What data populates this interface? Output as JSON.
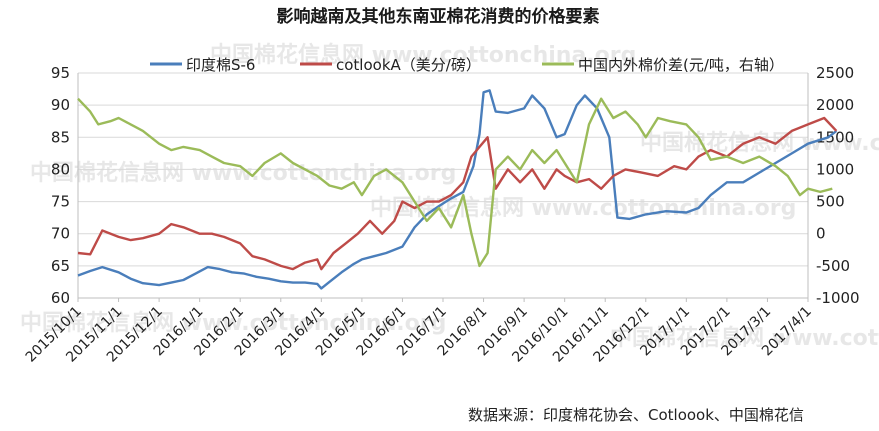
{
  "chart_data": {
    "type": "line",
    "title": "影响越南及其他东南亚棉花消费的价格要素",
    "source": "数据来源：印度棉花协会、Cotloook、中国棉花信",
    "watermark": "中国棉花信息网 www.cottonchina.org",
    "x_tick_labels": [
      "2015/10/1",
      "2015/11/1",
      "2015/12/1",
      "2016/1/1",
      "2016/2/1",
      "2016/3/1",
      "2016/4/1",
      "2016/5/1",
      "2016/6/1",
      "2016/7/1",
      "2016/8/1",
      "2016/9/1",
      "2016/10/1",
      "2016/11/1",
      "2016/12/1",
      "2017/1/1",
      "2017/2/1",
      "2017/3/1",
      "2017/4/1"
    ],
    "y_left": {
      "min": 60,
      "max": 95,
      "ticks": [
        "60",
        "65",
        "70",
        "75",
        "80",
        "85",
        "90",
        "95"
      ]
    },
    "y_right": {
      "min": -1000,
      "max": 2500,
      "ticks": [
        "-1000",
        "-500",
        "0",
        "500",
        "1000",
        "1500",
        "2000",
        "2500"
      ]
    },
    "series": [
      {
        "name": "印度棉S-6",
        "axis": "left",
        "color": "#4a7ebb",
        "points": [
          [
            0,
            63.5
          ],
          [
            0.3,
            64.2
          ],
          [
            0.6,
            64.8
          ],
          [
            1.0,
            64.0
          ],
          [
            1.3,
            63.0
          ],
          [
            1.6,
            62.3
          ],
          [
            2.0,
            62.0
          ],
          [
            2.3,
            62.4
          ],
          [
            2.6,
            62.8
          ],
          [
            2.9,
            63.8
          ],
          [
            3.2,
            64.8
          ],
          [
            3.5,
            64.5
          ],
          [
            3.8,
            64.0
          ],
          [
            4.1,
            63.8
          ],
          [
            4.4,
            63.3
          ],
          [
            4.7,
            63.0
          ],
          [
            5.0,
            62.6
          ],
          [
            5.3,
            62.4
          ],
          [
            5.6,
            62.4
          ],
          [
            5.9,
            62.2
          ],
          [
            6.0,
            61.5
          ],
          [
            6.2,
            62.5
          ],
          [
            6.5,
            64.0
          ],
          [
            6.8,
            65.3
          ],
          [
            7.0,
            66.0
          ],
          [
            7.3,
            66.5
          ],
          [
            7.6,
            67.0
          ],
          [
            8.0,
            68.0
          ],
          [
            8.3,
            71.0
          ],
          [
            8.6,
            73.0
          ],
          [
            8.9,
            74.3
          ],
          [
            9.2,
            75.5
          ],
          [
            9.5,
            76.5
          ],
          [
            9.75,
            80.5
          ],
          [
            9.9,
            85.5
          ],
          [
            10.0,
            92.0
          ],
          [
            10.15,
            92.3
          ],
          [
            10.3,
            89.0
          ],
          [
            10.6,
            88.8
          ],
          [
            11.0,
            89.5
          ],
          [
            11.2,
            91.5
          ],
          [
            11.5,
            89.5
          ],
          [
            11.8,
            85.0
          ],
          [
            12.0,
            85.5
          ],
          [
            12.3,
            90.0
          ],
          [
            12.5,
            91.5
          ],
          [
            12.8,
            89.5
          ],
          [
            13.1,
            85.0
          ],
          [
            13.3,
            72.5
          ],
          [
            13.6,
            72.3
          ],
          [
            14.0,
            73.0
          ],
          [
            14.5,
            73.5
          ],
          [
            15.0,
            73.3
          ],
          [
            15.3,
            74.0
          ],
          [
            15.6,
            76.0
          ],
          [
            16.0,
            78.0
          ],
          [
            16.4,
            78.0
          ],
          [
            16.8,
            79.5
          ],
          [
            17.2,
            81.0
          ],
          [
            17.6,
            82.5
          ],
          [
            18.0,
            84.0
          ],
          [
            18.5,
            85.0
          ],
          [
            18.7,
            86.0
          ]
        ]
      },
      {
        "name": "cotlookA（美分/磅）",
        "axis": "left",
        "color": "#be4b48",
        "points": [
          [
            0,
            67.0
          ],
          [
            0.3,
            66.8
          ],
          [
            0.6,
            70.5
          ],
          [
            1.0,
            69.5
          ],
          [
            1.3,
            69.0
          ],
          [
            1.6,
            69.3
          ],
          [
            2.0,
            70.0
          ],
          [
            2.3,
            71.5
          ],
          [
            2.6,
            71.0
          ],
          [
            3.0,
            70.0
          ],
          [
            3.3,
            70.0
          ],
          [
            3.6,
            69.5
          ],
          [
            4.0,
            68.5
          ],
          [
            4.3,
            66.5
          ],
          [
            4.6,
            66.0
          ],
          [
            5.0,
            65.0
          ],
          [
            5.3,
            64.5
          ],
          [
            5.6,
            65.5
          ],
          [
            5.9,
            66.0
          ],
          [
            6.0,
            64.5
          ],
          [
            6.3,
            67.0
          ],
          [
            6.6,
            68.5
          ],
          [
            6.9,
            70.0
          ],
          [
            7.2,
            72.0
          ],
          [
            7.5,
            70.0
          ],
          [
            7.8,
            72.0
          ],
          [
            8.0,
            75.0
          ],
          [
            8.3,
            74.0
          ],
          [
            8.6,
            75.0
          ],
          [
            8.9,
            75.0
          ],
          [
            9.2,
            76.0
          ],
          [
            9.5,
            78.0
          ],
          [
            9.7,
            82.0
          ],
          [
            9.9,
            83.5
          ],
          [
            10.1,
            85.0
          ],
          [
            10.3,
            77.0
          ],
          [
            10.6,
            80.0
          ],
          [
            10.9,
            78.0
          ],
          [
            11.2,
            80.0
          ],
          [
            11.5,
            77.0
          ],
          [
            11.8,
            80.0
          ],
          [
            12.0,
            79.0
          ],
          [
            12.3,
            78.0
          ],
          [
            12.6,
            78.5
          ],
          [
            12.9,
            77.0
          ],
          [
            13.2,
            79.0
          ],
          [
            13.5,
            80.0
          ],
          [
            13.9,
            79.5
          ],
          [
            14.3,
            79.0
          ],
          [
            14.7,
            80.5
          ],
          [
            15.0,
            80.0
          ],
          [
            15.3,
            82.0
          ],
          [
            15.6,
            83.0
          ],
          [
            16.0,
            82.0
          ],
          [
            16.4,
            84.0
          ],
          [
            16.8,
            85.0
          ],
          [
            17.2,
            84.0
          ],
          [
            17.6,
            86.0
          ],
          [
            18.0,
            87.0
          ],
          [
            18.4,
            88.0
          ],
          [
            18.7,
            86.0
          ]
        ]
      },
      {
        "name": "中国内外棉价差(元/吨，右轴）",
        "axis": "right",
        "color": "#9bbb59",
        "points": [
          [
            0,
            2100
          ],
          [
            0.3,
            1900
          ],
          [
            0.5,
            1700
          ],
          [
            0.8,
            1750
          ],
          [
            1.0,
            1800
          ],
          [
            1.3,
            1700
          ],
          [
            1.6,
            1600
          ],
          [
            2.0,
            1400
          ],
          [
            2.3,
            1300
          ],
          [
            2.6,
            1350
          ],
          [
            3.0,
            1300
          ],
          [
            3.3,
            1200
          ],
          [
            3.6,
            1100
          ],
          [
            4.0,
            1050
          ],
          [
            4.3,
            900
          ],
          [
            4.6,
            1100
          ],
          [
            5.0,
            1250
          ],
          [
            5.3,
            1100
          ],
          [
            5.6,
            1000
          ],
          [
            5.9,
            900
          ],
          [
            6.2,
            750
          ],
          [
            6.5,
            700
          ],
          [
            6.8,
            800
          ],
          [
            7.0,
            600
          ],
          [
            7.3,
            900
          ],
          [
            7.6,
            1000
          ],
          [
            8.0,
            800
          ],
          [
            8.3,
            500
          ],
          [
            8.6,
            200
          ],
          [
            8.9,
            400
          ],
          [
            9.2,
            100
          ],
          [
            9.5,
            600
          ],
          [
            9.7,
            0
          ],
          [
            9.9,
            -500
          ],
          [
            10.1,
            -300
          ],
          [
            10.3,
            1000
          ],
          [
            10.6,
            1200
          ],
          [
            10.9,
            1000
          ],
          [
            11.2,
            1300
          ],
          [
            11.5,
            1100
          ],
          [
            11.8,
            1300
          ],
          [
            12.0,
            1100
          ],
          [
            12.3,
            800
          ],
          [
            12.6,
            1700
          ],
          [
            12.9,
            2100
          ],
          [
            13.2,
            1800
          ],
          [
            13.5,
            1900
          ],
          [
            13.8,
            1700
          ],
          [
            14.0,
            1500
          ],
          [
            14.3,
            1800
          ],
          [
            14.6,
            1750
          ],
          [
            15.0,
            1700
          ],
          [
            15.3,
            1500
          ],
          [
            15.6,
            1150
          ],
          [
            16.0,
            1200
          ],
          [
            16.4,
            1100
          ],
          [
            16.8,
            1200
          ],
          [
            17.2,
            1050
          ],
          [
            17.5,
            900
          ],
          [
            17.8,
            600
          ],
          [
            18.0,
            700
          ],
          [
            18.3,
            650
          ],
          [
            18.6,
            700
          ]
        ]
      }
    ]
  }
}
